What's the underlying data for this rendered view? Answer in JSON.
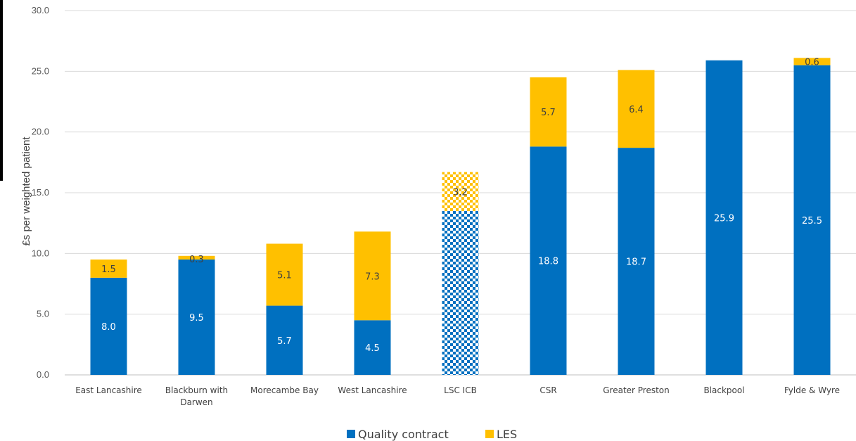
{
  "chart_data": {
    "type": "bar",
    "stacked": true,
    "ylabel": "£s per weighted patient",
    "ylim": [
      0,
      30
    ],
    "yticks": [
      "0.0",
      "5.0",
      "10.0",
      "15.0",
      "20.0",
      "25.0",
      "30.0"
    ],
    "grid": true,
    "legend_position": "bottom",
    "categories": [
      "East Lancashire",
      "Blackburn with Darwen",
      "Morecambe Bay",
      "West Lancashire",
      "LSC  ICB",
      "CSR",
      "Greater Preston",
      "Blackpool",
      "Fylde & Wyre"
    ],
    "category_lines": [
      [
        "East Lancashire"
      ],
      [
        "Blackburn with",
        "Darwen"
      ],
      [
        "Morecambe Bay"
      ],
      [
        "West Lancashire"
      ],
      [
        "LSC  ICB"
      ],
      [
        "CSR"
      ],
      [
        "Greater Preston"
      ],
      [
        "Blackpool"
      ],
      [
        "Fylde & Wyre"
      ]
    ],
    "patterned_category": "LSC  ICB",
    "series": [
      {
        "name": "Quality  contract",
        "color": "#0070C0",
        "values": [
          8.0,
          9.5,
          5.7,
          4.5,
          13.5,
          18.8,
          18.7,
          25.9,
          25.5
        ],
        "labels": [
          "8.0",
          "9.5",
          "5.7",
          "4.5",
          "",
          "18.8",
          "18.7",
          "25.9",
          "25.5"
        ]
      },
      {
        "name": "LES",
        "color": "#FFC000",
        "values": [
          1.5,
          0.3,
          5.1,
          7.3,
          3.2,
          5.7,
          6.4,
          0,
          0.6
        ],
        "labels": [
          "1.5",
          "0.3",
          "5.1",
          "7.3",
          "3.2",
          "5.7",
          "6.4",
          "",
          "0.6"
        ]
      }
    ]
  }
}
